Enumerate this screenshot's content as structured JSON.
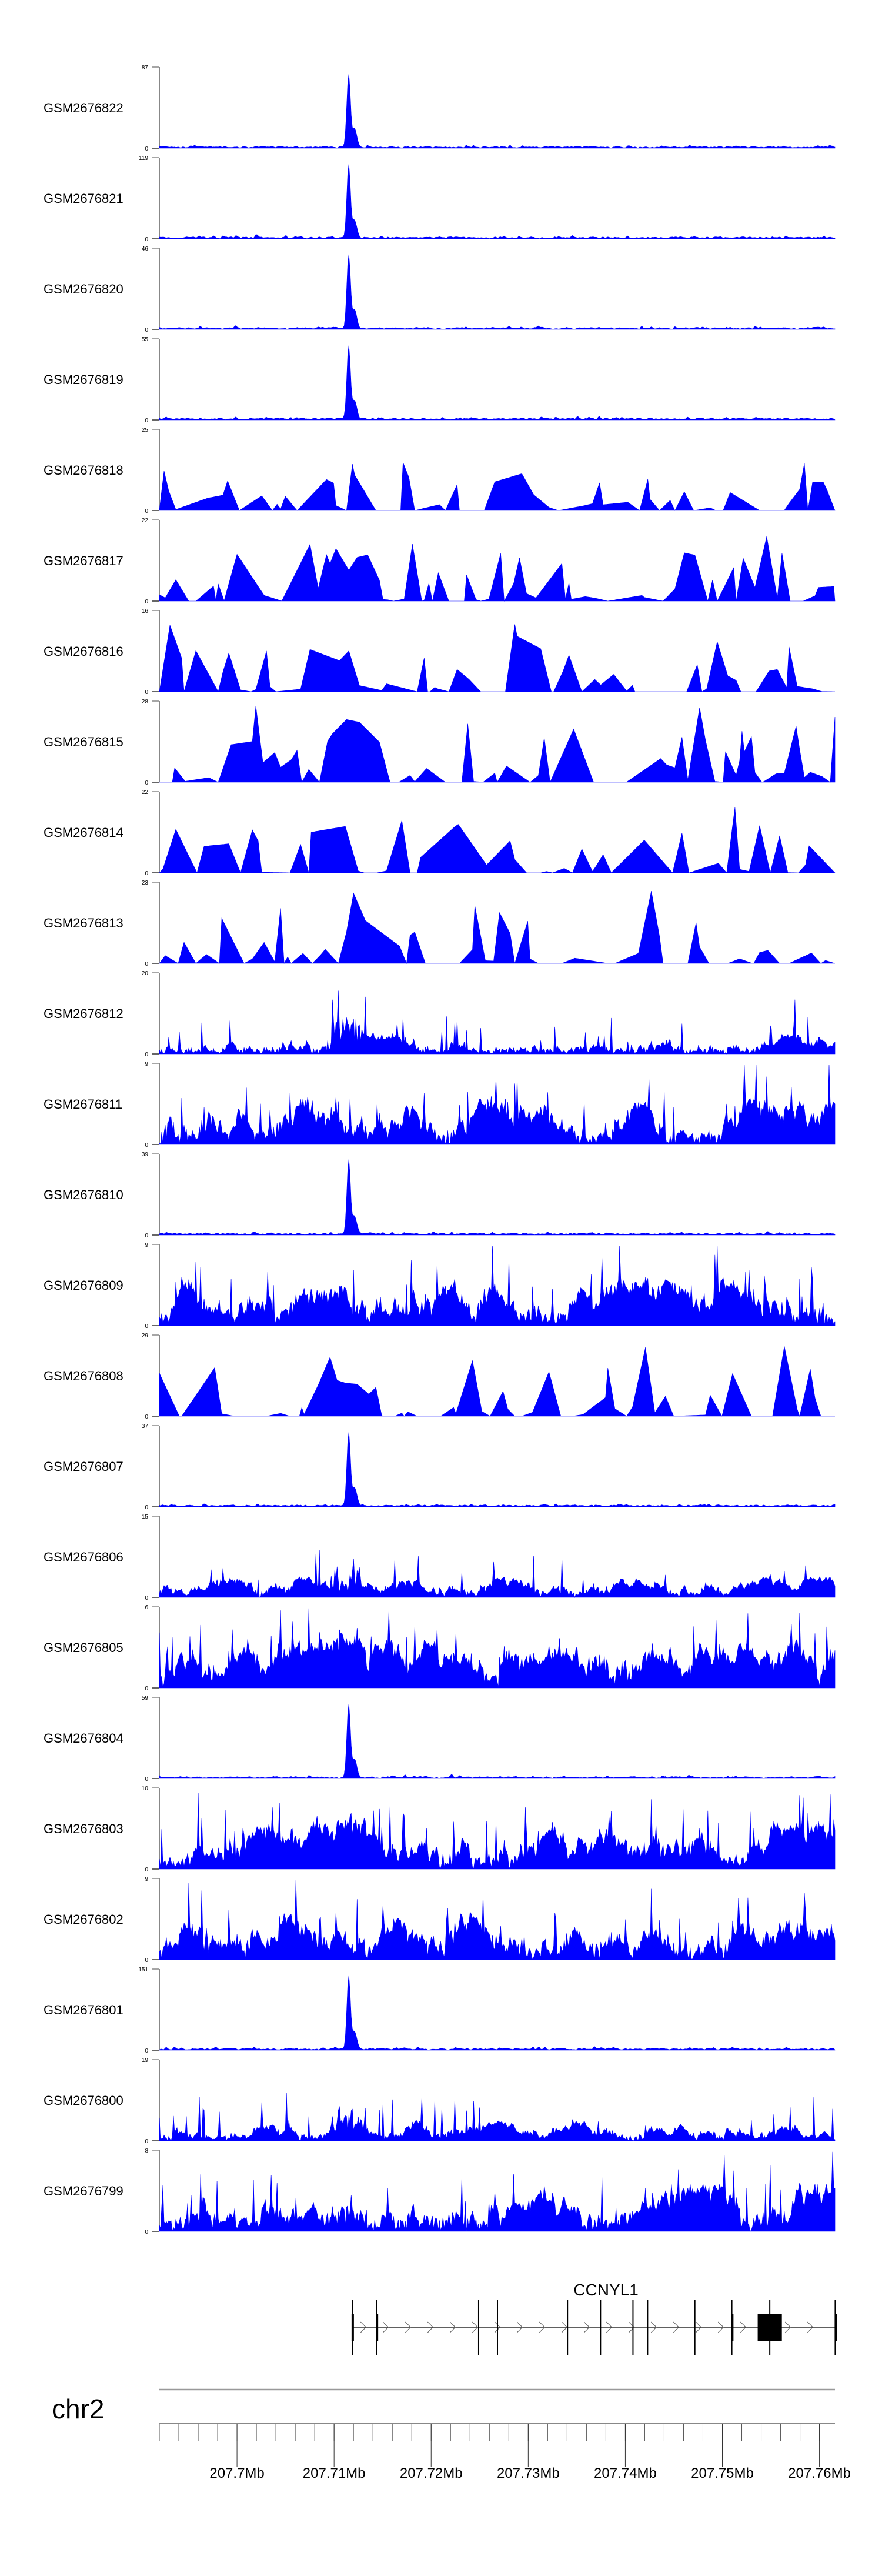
{
  "chart_data": {
    "type": "area",
    "title": "",
    "xlabel": "",
    "chromosome": "chr2",
    "xlim_mb": [
      207.692,
      207.7616
    ],
    "x_ticks": [
      "207.7Mb",
      "207.71Mb",
      "207.72Mb",
      "207.73Mb",
      "207.74Mb",
      "207.75Mb",
      "207.76Mb"
    ],
    "x_tick_values_mb": [
      207.7,
      207.71,
      207.72,
      207.73,
      207.74,
      207.75,
      207.76
    ],
    "minor_tick_step_mb": 0.002,
    "fill_color": "#0000ff",
    "peak_center_mb": 207.7115,
    "tracks": [
      {
        "name": "GSM2676822",
        "ymin": "0",
        "ymax": "87",
        "profile": "peak"
      },
      {
        "name": "GSM2676821",
        "ymin": "0",
        "ymax": "119",
        "profile": "peak"
      },
      {
        "name": "GSM2676820",
        "ymin": "0",
        "ymax": "46",
        "profile": "peak"
      },
      {
        "name": "GSM2676819",
        "ymin": "0",
        "ymax": "55",
        "profile": "peak"
      },
      {
        "name": "GSM2676818",
        "ymin": "0",
        "ymax": "25",
        "profile": "sparse"
      },
      {
        "name": "GSM2676817",
        "ymin": "0",
        "ymax": "22",
        "profile": "sparse"
      },
      {
        "name": "GSM2676816",
        "ymin": "0",
        "ymax": "16",
        "profile": "sparse"
      },
      {
        "name": "GSM2676815",
        "ymin": "0",
        "ymax": "28",
        "profile": "sparse"
      },
      {
        "name": "GSM2676814",
        "ymin": "0",
        "ymax": "22",
        "profile": "sparse"
      },
      {
        "name": "GSM2676813",
        "ymin": "0",
        "ymax": "23",
        "profile": "sparse"
      },
      {
        "name": "GSM2676812",
        "ymin": "0",
        "ymax": "20",
        "profile": "moderate"
      },
      {
        "name": "GSM2676811",
        "ymin": "0",
        "ymax": "9",
        "profile": "dense"
      },
      {
        "name": "GSM2676810",
        "ymin": "0",
        "ymax": "39",
        "profile": "peak"
      },
      {
        "name": "GSM2676809",
        "ymin": "0",
        "ymax": "9",
        "profile": "dense"
      },
      {
        "name": "GSM2676808",
        "ymin": "0",
        "ymax": "29",
        "profile": "sparse"
      },
      {
        "name": "GSM2676807",
        "ymin": "0",
        "ymax": "37",
        "profile": "peak"
      },
      {
        "name": "GSM2676806",
        "ymin": "0",
        "ymax": "15",
        "profile": "moderate"
      },
      {
        "name": "GSM2676805",
        "ymin": "0",
        "ymax": "6",
        "profile": "dense"
      },
      {
        "name": "GSM2676804",
        "ymin": "0",
        "ymax": "59",
        "profile": "peak"
      },
      {
        "name": "GSM2676803",
        "ymin": "0",
        "ymax": "10",
        "profile": "dense"
      },
      {
        "name": "GSM2676802",
        "ymin": "0",
        "ymax": "9",
        "profile": "dense"
      },
      {
        "name": "GSM2676801",
        "ymin": "0",
        "ymax": "151",
        "profile": "peak"
      },
      {
        "name": "GSM2676800",
        "ymin": "0",
        "ymax": "19",
        "profile": "moderate"
      },
      {
        "name": "GSM2676799",
        "ymin": "0",
        "ymax": "8",
        "profile": "dense"
      }
    ],
    "gene": {
      "name": "CCNYL1",
      "strand": "+",
      "start_mb": 207.71195,
      "end_mb": 207.76165,
      "exons_mb": [
        [
          207.7118,
          207.712,
          true
        ],
        [
          207.7143,
          207.7145,
          true
        ],
        [
          207.72488,
          207.7249,
          false
        ],
        [
          207.72682,
          207.72684,
          false
        ],
        [
          207.73404,
          207.73406,
          false
        ],
        [
          207.73744,
          207.73746,
          false
        ],
        [
          207.74078,
          207.7408,
          false
        ],
        [
          207.74229,
          207.74231,
          false
        ],
        [
          207.74715,
          207.74718,
          false
        ],
        [
          207.7509,
          207.75105,
          true
        ],
        [
          207.75364,
          207.75613,
          true
        ],
        [
          207.7616,
          207.76165,
          true
        ]
      ]
    }
  }
}
